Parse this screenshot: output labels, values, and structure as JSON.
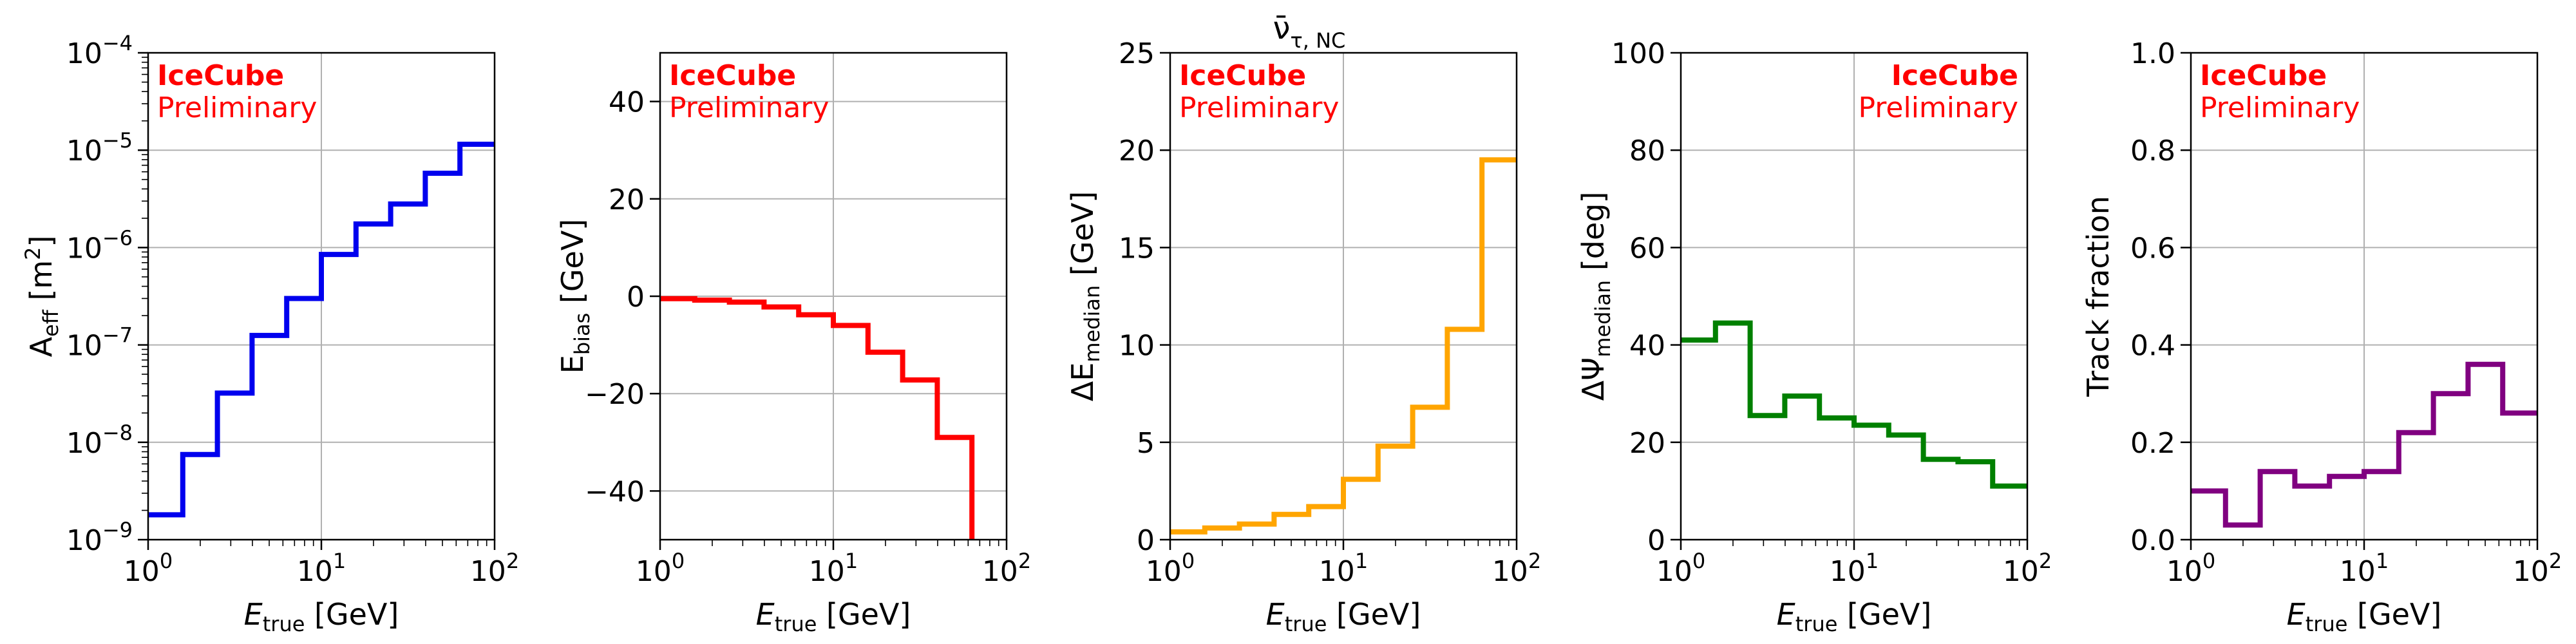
{
  "figure_title": "ν̄τ,NC",
  "figure_title_parts": {
    "base": "ν̄",
    "sub": "τ, NC"
  },
  "chart_data": [
    {
      "type": "line",
      "step": true,
      "color": "#0000ee",
      "xscale": "log",
      "yscale": "log",
      "xlim": [
        1,
        100
      ],
      "ylim": [
        1e-09,
        0.0001
      ],
      "xlabel": {
        "base": "E",
        "sub": "true",
        "suffix": " [GeV]"
      },
      "ylabel": {
        "base": "A",
        "sub": "eff",
        "suffix": " [m",
        "sup": "2",
        "end": "]"
      },
      "xticks": [
        {
          "base": "10",
          "exp": "0"
        },
        {
          "base": "10",
          "exp": "1"
        },
        {
          "base": "10",
          "exp": "2"
        }
      ],
      "yticks": [
        {
          "base": "10",
          "exp": "−9"
        },
        {
          "base": "10",
          "exp": "−8"
        },
        {
          "base": "10",
          "exp": "−7"
        },
        {
          "base": "10",
          "exp": "−6"
        },
        {
          "base": "10",
          "exp": "−5"
        },
        {
          "base": "10",
          "exp": "−4"
        }
      ],
      "annotation": {
        "line1": "IceCube",
        "line2": "Preliminary",
        "position": "top-left"
      },
      "bin_edges": [
        1,
        1.585,
        2.512,
        3.981,
        6.31,
        10,
        15.85,
        25.12,
        39.81,
        63.1,
        100
      ],
      "values": [
        1.8e-09,
        7.5e-09,
        3.2e-08,
        1.25e-07,
        3e-07,
        8.5e-07,
        1.75e-06,
        2.8e-06,
        5.8e-06,
        1.15e-05
      ]
    },
    {
      "type": "line",
      "step": true,
      "color": "#ff0000",
      "xscale": "log",
      "yscale": "linear",
      "xlim": [
        1,
        100
      ],
      "ylim": [
        -50,
        50
      ],
      "xlabel": {
        "base": "E",
        "sub": "true",
        "suffix": " [GeV]"
      },
      "ylabel": {
        "base": "E",
        "sub": "bias",
        "suffix": " [GeV]"
      },
      "xticks": [
        {
          "base": "10",
          "exp": "0"
        },
        {
          "base": "10",
          "exp": "1"
        },
        {
          "base": "10",
          "exp": "2"
        }
      ],
      "yticks": [
        {
          "value": -40,
          "label": "−40"
        },
        {
          "value": -20,
          "label": "−20"
        },
        {
          "value": 0,
          "label": "0"
        },
        {
          "value": 20,
          "label": "20"
        },
        {
          "value": 40,
          "label": "40"
        }
      ],
      "annotation": {
        "line1": "IceCube",
        "line2": "Preliminary",
        "position": "top-left"
      },
      "bin_edges": [
        1,
        1.585,
        2.512,
        3.981,
        6.31,
        10,
        15.85,
        25.12,
        39.81,
        63.1
      ],
      "values": [
        -0.5,
        -0.8,
        -1.2,
        -2.2,
        -3.8,
        -6.0,
        -11.5,
        -17.2,
        -29.0
      ],
      "tail_to": -50
    },
    {
      "type": "line",
      "step": true,
      "color": "#ffa500",
      "xscale": "log",
      "yscale": "linear",
      "xlim": [
        1,
        100
      ],
      "ylim": [
        0,
        25
      ],
      "xlabel": {
        "base": "E",
        "sub": "true",
        "suffix": " [GeV]"
      },
      "ylabel": {
        "base": "ΔE",
        "sub": "median",
        "suffix": " [GeV]"
      },
      "xticks": [
        {
          "base": "10",
          "exp": "0"
        },
        {
          "base": "10",
          "exp": "1"
        },
        {
          "base": "10",
          "exp": "2"
        }
      ],
      "yticks": [
        {
          "value": 0,
          "label": "0"
        },
        {
          "value": 5,
          "label": "5"
        },
        {
          "value": 10,
          "label": "10"
        },
        {
          "value": 15,
          "label": "15"
        },
        {
          "value": 20,
          "label": "20"
        },
        {
          "value": 25,
          "label": "25"
        }
      ],
      "annotation": {
        "line1": "IceCube",
        "line2": "Preliminary",
        "position": "top-left"
      },
      "bin_edges": [
        1,
        1.585,
        2.512,
        3.981,
        6.31,
        10,
        15.85,
        25.12,
        39.81,
        63.1,
        100
      ],
      "values": [
        0.4,
        0.6,
        0.8,
        1.3,
        1.7,
        3.1,
        4.8,
        6.8,
        10.8,
        19.5
      ]
    },
    {
      "type": "line",
      "step": true,
      "color": "#008000",
      "xscale": "log",
      "yscale": "linear",
      "xlim": [
        1,
        100
      ],
      "ylim": [
        0,
        100
      ],
      "xlabel": {
        "base": "E",
        "sub": "true",
        "suffix": " [GeV]"
      },
      "ylabel": {
        "base": "ΔΨ",
        "sub": "median",
        "suffix": " [deg]"
      },
      "xticks": [
        {
          "base": "10",
          "exp": "0"
        },
        {
          "base": "10",
          "exp": "1"
        },
        {
          "base": "10",
          "exp": "2"
        }
      ],
      "yticks": [
        {
          "value": 0,
          "label": "0"
        },
        {
          "value": 20,
          "label": "20"
        },
        {
          "value": 40,
          "label": "40"
        },
        {
          "value": 60,
          "label": "60"
        },
        {
          "value": 80,
          "label": "80"
        },
        {
          "value": 100,
          "label": "100"
        }
      ],
      "annotation": {
        "line1": "IceCube",
        "line2": "Preliminary",
        "position": "top-right"
      },
      "bin_edges": [
        1,
        1.585,
        2.512,
        3.981,
        6.31,
        10,
        15.85,
        25.12,
        39.81,
        63.1,
        100
      ],
      "values": [
        41,
        44.5,
        25.5,
        29.5,
        25,
        23.5,
        21.5,
        16.5,
        16,
        11
      ]
    },
    {
      "type": "line",
      "step": true,
      "color": "#800080",
      "xscale": "log",
      "yscale": "linear",
      "xlim": [
        1,
        100
      ],
      "ylim": [
        0,
        1
      ],
      "xlabel": {
        "base": "E",
        "sub": "true",
        "suffix": " [GeV]"
      },
      "ylabel": {
        "base": "Track fraction",
        "sub": "",
        "suffix": ""
      },
      "xticks": [
        {
          "base": "10",
          "exp": "0"
        },
        {
          "base": "10",
          "exp": "1"
        },
        {
          "base": "10",
          "exp": "2"
        }
      ],
      "yticks": [
        {
          "value": 0,
          "label": "0.0"
        },
        {
          "value": 0.2,
          "label": "0.2"
        },
        {
          "value": 0.4,
          "label": "0.4"
        },
        {
          "value": 0.6,
          "label": "0.6"
        },
        {
          "value": 0.8,
          "label": "0.8"
        },
        {
          "value": 1.0,
          "label": "1.0"
        }
      ],
      "annotation": {
        "line1": "IceCube",
        "line2": "Preliminary",
        "position": "top-left"
      },
      "bin_edges": [
        1,
        1.585,
        2.512,
        3.981,
        6.31,
        10,
        15.85,
        25.12,
        39.81,
        63.1,
        100
      ],
      "values": [
        0.1,
        0.03,
        0.14,
        0.11,
        0.13,
        0.14,
        0.22,
        0.3,
        0.36,
        0.26
      ]
    }
  ]
}
